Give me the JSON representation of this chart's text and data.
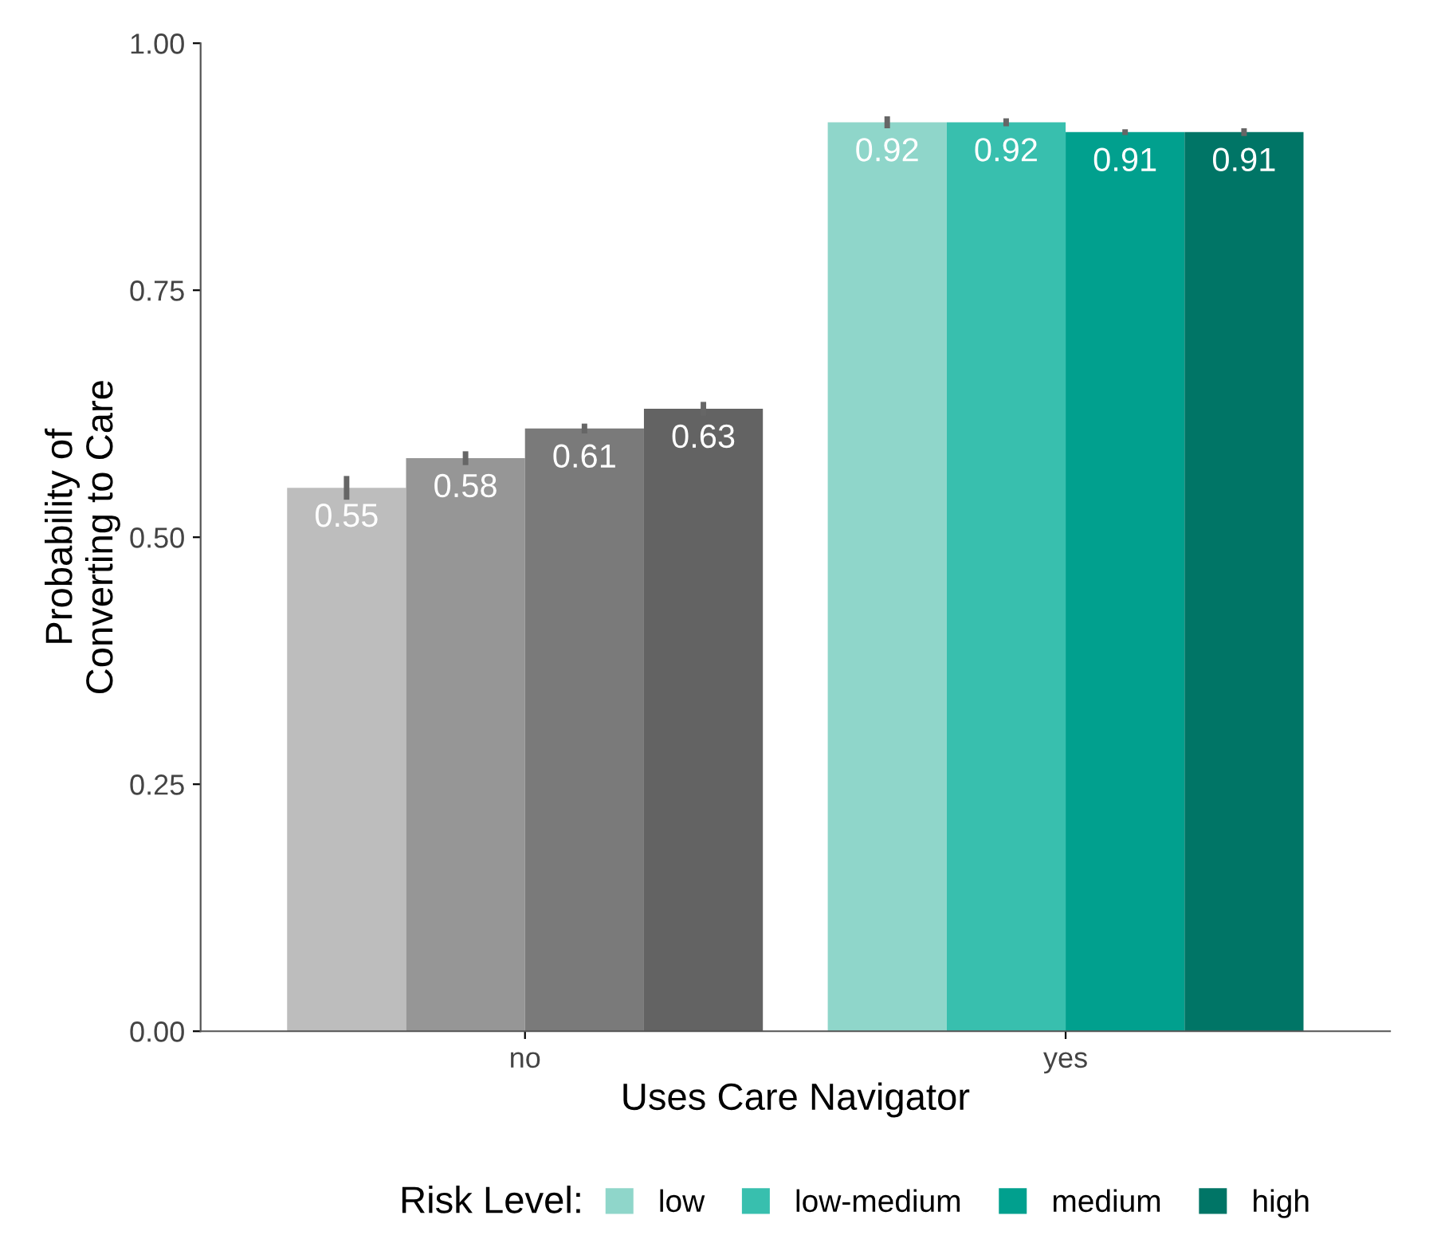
{
  "chart_data": {
    "type": "bar",
    "xlabel": "Uses Care Navigator",
    "ylabel": "Probability of\nConverting to Care",
    "legend_title": "Risk Level:",
    "categories": [
      "no",
      "yes"
    ],
    "series": [
      {
        "name": "low",
        "color": "#8fd6ca",
        "colors": [
          "#bdbdbd",
          "#8fd6ca"
        ],
        "values": [
          0.55,
          0.92
        ],
        "errors": [
          0.012,
          0.006
        ]
      },
      {
        "name": "low-medium",
        "color": "#38bfae",
        "colors": [
          "#969696",
          "#38bfae"
        ],
        "values": [
          0.58,
          0.92
        ],
        "errors": [
          0.007,
          0.004
        ]
      },
      {
        "name": "medium",
        "color": "#01a08e",
        "colors": [
          "#7a7a7a",
          "#01a08e"
        ],
        "values": [
          0.61,
          0.91
        ],
        "errors": [
          0.005,
          0.003
        ]
      },
      {
        "name": "high",
        "color": "#007566",
        "colors": [
          "#636363",
          "#007566"
        ],
        "values": [
          0.63,
          0.91
        ],
        "errors": [
          0.007,
          0.004
        ]
      }
    ],
    "ylim": [
      0,
      1
    ],
    "yticks": [
      {
        "value": 0,
        "label": "0.00"
      },
      {
        "value": 0.25,
        "label": "0.25"
      },
      {
        "value": 0.5,
        "label": "0.50"
      },
      {
        "value": 0.75,
        "label": "0.75"
      },
      {
        "value": 1,
        "label": "1.00"
      }
    ],
    "data_labels": true,
    "legend": "bottom",
    "grid": false
  }
}
